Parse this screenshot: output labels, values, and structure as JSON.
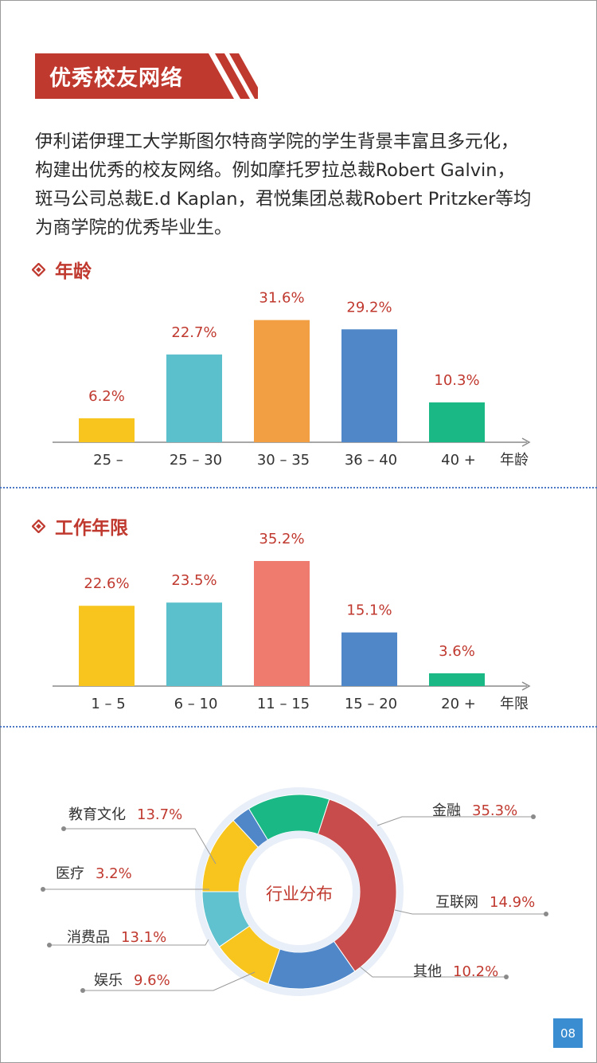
{
  "header": {
    "title": "优秀校友网络"
  },
  "intro": {
    "line1": "伊利诺伊理工大学斯图尔特商学院的学生背景丰富且多元化，",
    "line2": "构建出优秀的校友网络。例如摩托罗拉总裁Robert Galvin，",
    "line3": "斑马公司总裁E.d Kaplan，君悦集团总裁Robert Pritzker等均",
    "line4": "为商学院的优秀毕业生。"
  },
  "colors": {
    "accent": "#c0392f",
    "yellow": "#f7c51e",
    "teal": "#5bbfcc",
    "orange": "#f29f44",
    "blue": "#4f87c9",
    "green": "#19b884",
    "salmon": "#ee7b6e",
    "red": "#c94c4c",
    "cyan": "#60c1cf"
  },
  "icons": {
    "section": "diamond-icon"
  },
  "section_age": {
    "title": "年龄"
  },
  "section_work": {
    "title": "工作年限"
  },
  "page_number": "08",
  "chart_data": [
    {
      "type": "bar",
      "title": "年龄",
      "xlabel": "年龄",
      "categories": [
        "25 –",
        "25 – 30",
        "30 – 35",
        "36 – 40",
        "40 +"
      ],
      "values": [
        6.2,
        22.7,
        31.6,
        29.2,
        10.3
      ],
      "value_labels": [
        "6.2%",
        "22.7%",
        "31.6%",
        "29.2%",
        "10.3%"
      ],
      "colors": [
        "#f7c51e",
        "#5bbfcc",
        "#f29f44",
        "#4f87c9",
        "#19b884"
      ],
      "ylim": [
        0,
        34
      ]
    },
    {
      "type": "bar",
      "title": "工作年限",
      "xlabel": "年限",
      "categories": [
        "1 – 5",
        "6 – 10",
        "11 – 15",
        "15 – 20",
        "20 +"
      ],
      "values": [
        22.6,
        23.5,
        35.2,
        15.1,
        3.6
      ],
      "value_labels": [
        "22.6%",
        "23.5%",
        "35.2%",
        "15.1%",
        "3.6%"
      ],
      "colors": [
        "#f7c51e",
        "#5bbfcc",
        "#ee7b6e",
        "#4f87c9",
        "#19b884"
      ],
      "ylim": [
        0,
        37
      ]
    },
    {
      "type": "pie",
      "title": "行业分布",
      "slices": [
        {
          "name": "金融",
          "value": 35.3,
          "label": "35.3%",
          "color": "#c94c4c"
        },
        {
          "name": "互联网",
          "value": 14.9,
          "label": "14.9%",
          "color": "#4f87c9"
        },
        {
          "name": "其他",
          "value": 10.2,
          "label": "10.2%",
          "color": "#f7c51e"
        },
        {
          "name": "娱乐",
          "value": 9.6,
          "label": "9.6%",
          "color": "#60c1cf"
        },
        {
          "name": "消费品",
          "value": 13.1,
          "label": "13.1%",
          "color": "#f7c51e"
        },
        {
          "name": "医疗",
          "value": 3.2,
          "label": "3.2%",
          "color": "#4f87c9"
        },
        {
          "name": "教育文化",
          "value": 13.7,
          "label": "13.7%",
          "color": "#19b884"
        }
      ]
    }
  ]
}
